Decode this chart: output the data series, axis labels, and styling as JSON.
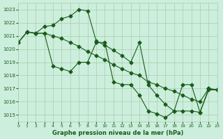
{
  "title": "Graphe pression niveau de la mer (hPa)",
  "xlabel": "Graphe pression niveau de la mer (hPa)",
  "xlim": [
    0,
    23
  ],
  "ylim": [
    1014.5,
    1023.5
  ],
  "yticks": [
    1015,
    1016,
    1017,
    1018,
    1019,
    1020,
    1021,
    1022,
    1023
  ],
  "xticks": [
    0,
    1,
    2,
    3,
    4,
    5,
    6,
    7,
    8,
    9,
    10,
    11,
    12,
    13,
    14,
    15,
    16,
    17,
    18,
    19,
    20,
    21,
    22,
    23
  ],
  "bg_color": "#cceedd",
  "line_color": "#1a5c1a",
  "grid_color": "#aaccaa",
  "series": [
    [
      1020.5,
      1021.3,
      1021.2,
      1021.2,
      1018.7,
      1018.5,
      1018.3,
      1019.0,
      1019.0,
      1020.5,
      1020.5,
      1017.5,
      1017.3,
      1017.3,
      1016.5,
      1015.3,
      1015.1,
      1014.8,
      1015.3,
      1015.3,
      1015.3,
      1015.2,
      1017.0,
      1016.9
    ],
    [
      1020.5,
      1021.3,
      1021.2,
      1021.7,
      1021.8,
      1022.3,
      1022.5,
      1023.0,
      1022.9,
      1020.6,
      1020.3,
      1019.9,
      1019.5,
      1019.0,
      1020.5,
      1017.3,
      1016.5,
      1015.8,
      1015.3,
      1017.3,
      1017.3,
      1015.2,
      1016.9,
      1016.9
    ],
    [
      1020.5,
      1021.3,
      1021.2,
      1021.2,
      1021.0,
      1020.8,
      1020.5,
      1020.2,
      1019.8,
      1019.5,
      1019.2,
      1018.8,
      1018.5,
      1018.2,
      1018.0,
      1017.5,
      1017.3,
      1017.0,
      1016.8,
      1016.5,
      1016.2,
      1016.0,
      1017.0,
      1016.9
    ]
  ]
}
